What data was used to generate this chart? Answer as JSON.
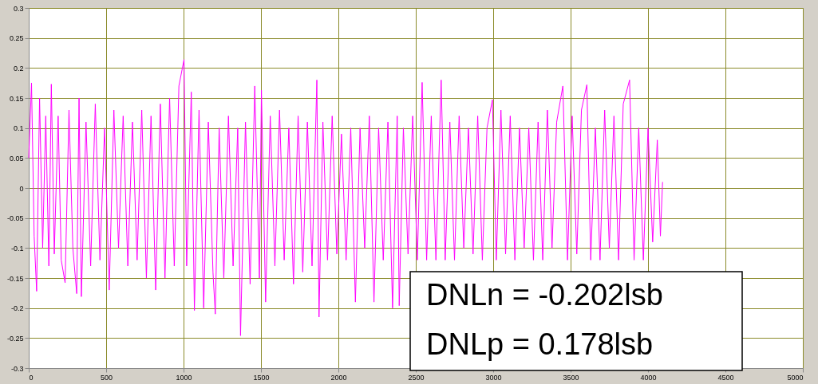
{
  "chart_data": {
    "type": "line",
    "x": [
      0,
      18,
      35,
      51,
      70,
      90,
      110,
      130,
      146,
      165,
      190,
      210,
      235,
      260,
      285,
      310,
      325,
      340,
      370,
      400,
      430,
      460,
      490,
      520,
      550,
      580,
      610,
      640,
      670,
      700,
      730,
      760,
      790,
      820,
      850,
      880,
      910,
      940,
      970,
      1003,
      1020,
      1050,
      1070,
      1100,
      1130,
      1160,
      1190,
      1205,
      1230,
      1260,
      1290,
      1320,
      1350,
      1368,
      1400,
      1430,
      1460,
      1490,
      1503,
      1530,
      1560,
      1590,
      1620,
      1650,
      1680,
      1710,
      1740,
      1770,
      1800,
      1830,
      1861,
      1875,
      1900,
      1930,
      1960,
      1990,
      2020,
      2050,
      2080,
      2110,
      2140,
      2170,
      2200,
      2230,
      2260,
      2290,
      2320,
      2350,
      2380,
      2393,
      2420,
      2450,
      2480,
      2510,
      2541,
      2570,
      2600,
      2630,
      2664,
      2690,
      2720,
      2750,
      2780,
      2810,
      2840,
      2870,
      2900,
      2930,
      2960,
      2995,
      3020,
      3050,
      3080,
      3110,
      3140,
      3170,
      3200,
      3230,
      3260,
      3290,
      3320,
      3350,
      3380,
      3410,
      3450,
      3480,
      3510,
      3540,
      3570,
      3605,
      3630,
      3660,
      3690,
      3720,
      3750,
      3780,
      3810,
      3840,
      3881,
      3910,
      3940,
      3970,
      4000,
      4030,
      4060,
      4080,
      4094
    ],
    "series": [
      {
        "color": "#ff00ff",
        "values": [
          0.05,
          0.175,
          -0.08,
          -0.172,
          0.15,
          -0.1,
          0.12,
          -0.13,
          0.173,
          -0.11,
          0.12,
          -0.12,
          -0.158,
          0.13,
          -0.1,
          -0.176,
          0.15,
          -0.181,
          0.11,
          -0.13,
          0.14,
          -0.12,
          0.1,
          -0.17,
          0.13,
          -0.1,
          0.12,
          -0.13,
          0.11,
          -0.12,
          0.13,
          -0.15,
          0.12,
          -0.17,
          0.14,
          -0.15,
          0.15,
          -0.13,
          0.17,
          0.214,
          -0.13,
          0.16,
          -0.204,
          0.13,
          -0.2,
          0.11,
          -0.14,
          -0.21,
          0.1,
          -0.15,
          0.12,
          -0.13,
          0.1,
          -0.246,
          0.11,
          -0.16,
          0.17,
          -0.15,
          0.163,
          -0.19,
          0.12,
          -0.13,
          0.13,
          -0.12,
          0.1,
          -0.16,
          0.12,
          -0.14,
          0.11,
          -0.13,
          0.18,
          -0.215,
          0.11,
          -0.12,
          0.12,
          -0.11,
          0.09,
          -0.12,
          0.1,
          -0.19,
          0.1,
          -0.1,
          0.12,
          -0.19,
          0.1,
          -0.12,
          0.11,
          -0.2,
          0.12,
          -0.196,
          0.1,
          -0.11,
          0.12,
          -0.12,
          0.176,
          -0.12,
          0.12,
          -0.12,
          0.18,
          -0.12,
          0.11,
          -0.12,
          0.12,
          -0.1,
          0.1,
          -0.11,
          0.12,
          -0.12,
          0.1,
          0.147,
          -0.12,
          0.13,
          -0.11,
          0.12,
          -0.12,
          0.1,
          -0.1,
          0.1,
          -0.12,
          0.11,
          -0.12,
          0.13,
          -0.1,
          0.11,
          0.17,
          -0.12,
          0.12,
          -0.11,
          0.13,
          0.172,
          -0.12,
          0.1,
          -0.12,
          0.13,
          -0.1,
          0.12,
          -0.12,
          0.14,
          0.18,
          -0.12,
          0.1,
          -0.12,
          0.1,
          -0.09,
          0.08,
          -0.08,
          0.01
        ]
      }
    ],
    "xlim": [
      0,
      5000
    ],
    "xticks": [
      0,
      500,
      1000,
      1500,
      2000,
      2500,
      3000,
      3500,
      4000,
      4500,
      5000
    ],
    "ylim": [
      -0.3,
      0.3
    ],
    "yticks": [
      -0.3,
      -0.25,
      -0.2,
      -0.15,
      -0.1,
      -0.05,
      0,
      0.05,
      0.1,
      0.15,
      0.2,
      0.25,
      0.3
    ],
    "grid": true,
    "annotations": [
      "DNLn = -0.202lsb",
      "DNLp = 0.178lsb"
    ]
  }
}
